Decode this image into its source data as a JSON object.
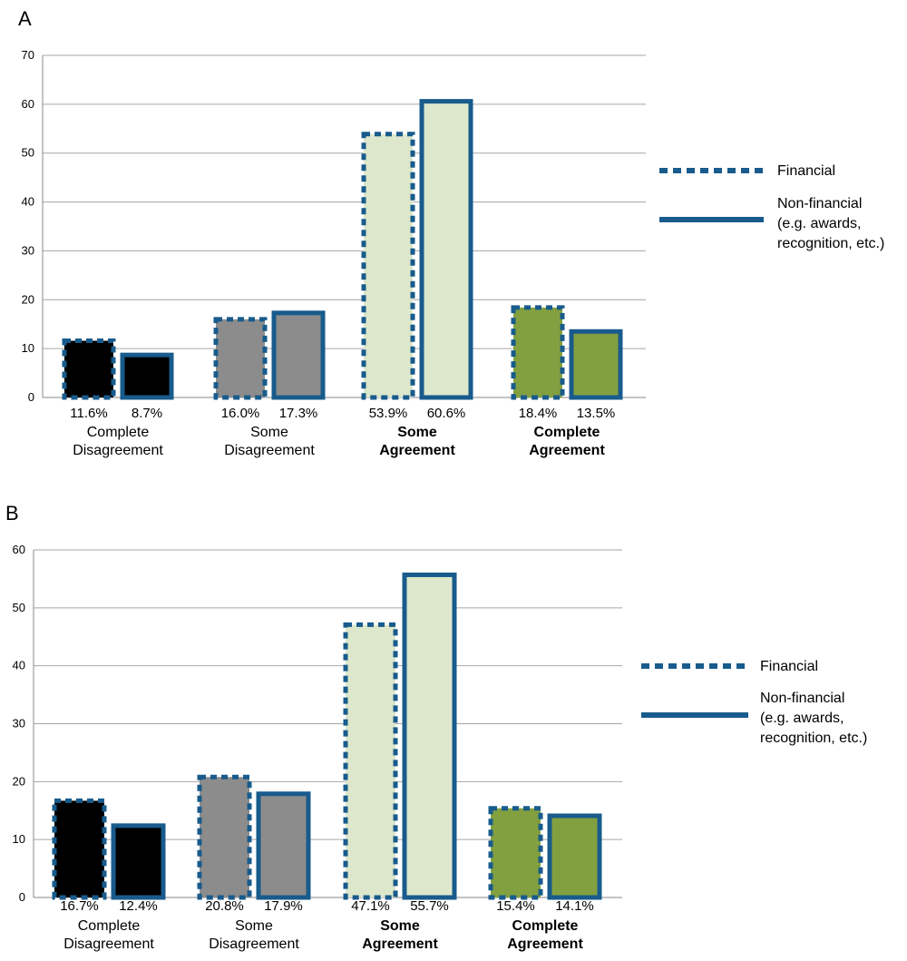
{
  "panels": [
    {
      "letter": "A",
      "chart_data": {
        "type": "bar",
        "categories": [
          [
            "Complete",
            "Disagreement"
          ],
          [
            "Some",
            "Disagreement"
          ],
          [
            "Some",
            "Agreement"
          ],
          [
            "Complete",
            "Agreement"
          ]
        ],
        "category_bold": [
          false,
          false,
          true,
          true
        ],
        "category_colors": [
          "#000000",
          "#8c8c8c",
          "#dde7cc",
          "#82a040"
        ],
        "series": [
          {
            "name": "Financial",
            "style": "dotted",
            "values": [
              11.6,
              16.0,
              53.9,
              18.4
            ],
            "labels": [
              "11.6%",
              "16.0%",
              "53.9%",
              "18.4%"
            ]
          },
          {
            "name": "Non-financial (e.g. awards, recognition, etc.)",
            "style": "solid",
            "values": [
              8.7,
              17.3,
              60.6,
              13.5
            ],
            "labels": [
              "8.7%",
              "17.3%",
              "60.6%",
              "13.5%"
            ]
          }
        ],
        "ylim": [
          0,
          70
        ],
        "yticks": [
          0,
          10,
          20,
          30,
          40,
          50,
          60,
          70
        ],
        "grid": true,
        "legend": {
          "position": "right",
          "items": [
            [
              "Financial"
            ],
            [
              "Non-financial",
              "(e.g. awards,",
              "recognition, etc.)"
            ]
          ]
        },
        "colors": {
          "outline": "#185b8c",
          "grid": "#a6a6a6"
        }
      }
    },
    {
      "letter": "B",
      "chart_data": {
        "type": "bar",
        "categories": [
          [
            "Complete",
            "Disagreement"
          ],
          [
            "Some",
            "Disagreement"
          ],
          [
            "Some",
            "Agreement"
          ],
          [
            "Complete",
            "Agreement"
          ]
        ],
        "category_bold": [
          false,
          false,
          true,
          true
        ],
        "category_colors": [
          "#000000",
          "#8c8c8c",
          "#dde7cc",
          "#82a040"
        ],
        "series": [
          {
            "name": "Financial",
            "style": "dotted",
            "values": [
              16.7,
              20.8,
              47.1,
              15.4
            ],
            "labels": [
              "16.7%",
              "20.8%",
              "47.1%",
              "15.4%"
            ]
          },
          {
            "name": "Non-financial (e.g. awards, recognition, etc.)",
            "style": "solid",
            "values": [
              12.4,
              17.9,
              55.7,
              14.1
            ],
            "labels": [
              "12.4%",
              "17.9%",
              "55.7%",
              "14.1%"
            ]
          }
        ],
        "ylim": [
          0,
          60
        ],
        "yticks": [
          0,
          10,
          20,
          30,
          40,
          50,
          60
        ],
        "grid": true,
        "legend": {
          "position": "right",
          "items": [
            [
              "Financial"
            ],
            [
              "Non-financial",
              "(e.g. awards,",
              "recognition, etc.)"
            ]
          ]
        },
        "colors": {
          "outline": "#185b8c",
          "grid": "#a6a6a6"
        }
      }
    }
  ]
}
